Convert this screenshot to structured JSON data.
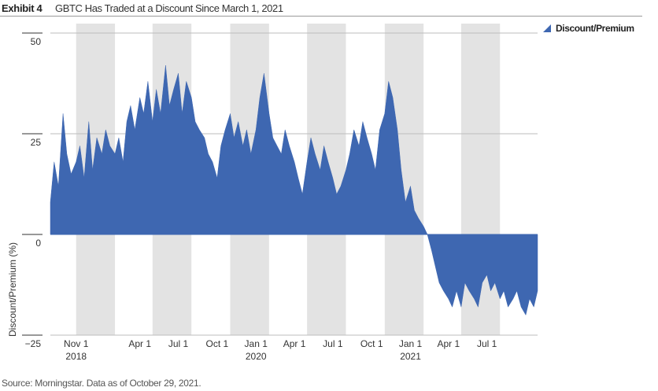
{
  "header": {
    "exhibit": "Exhibit 4",
    "title": "GBTC Has Traded at a Discount Since March 1, 2021"
  },
  "source": "Source: Morningstar.  Data as of October 29, 2021.",
  "colors": {
    "series": "#3e67b1",
    "band": "#e3e3e3",
    "grid": "#bdbdbd"
  },
  "chart_data": {
    "type": "area",
    "ylabel": "Discount/Premium (%)",
    "ylim": [
      -25,
      50
    ],
    "yticks": [
      50,
      25,
      0,
      -25
    ],
    "ytick_labels": [
      "50",
      "25",
      "0",
      "−25"
    ],
    "xlim": [
      "2018-09-01",
      "2021-10-29"
    ],
    "xticks": [
      {
        "date": "2018-11-01",
        "label": "Nov 1",
        "year": "2018"
      },
      {
        "date": "2019-04-01",
        "label": "Apr 1",
        "year": ""
      },
      {
        "date": "2019-07-01",
        "label": "Jul 1",
        "year": ""
      },
      {
        "date": "2019-10-01",
        "label": "Oct 1",
        "year": ""
      },
      {
        "date": "2020-01-01",
        "label": "Jan 1",
        "year": "2020"
      },
      {
        "date": "2020-04-01",
        "label": "Apr 1",
        "year": ""
      },
      {
        "date": "2020-07-01",
        "label": "Jul 1",
        "year": ""
      },
      {
        "date": "2020-10-01",
        "label": "Oct 1",
        "year": ""
      },
      {
        "date": "2021-01-01",
        "label": "Jan 1",
        "year": "2021"
      },
      {
        "date": "2021-04-01",
        "label": "Apr 1",
        "year": ""
      },
      {
        "date": "2021-07-01",
        "label": "Jul 1",
        "year": ""
      }
    ],
    "bands": [
      [
        "2018-11-01",
        "2019-02-01"
      ],
      [
        "2019-05-01",
        "2019-08-01"
      ],
      [
        "2019-11-01",
        "2020-02-01"
      ],
      [
        "2020-05-01",
        "2020-08-01"
      ],
      [
        "2020-11-01",
        "2021-02-01"
      ],
      [
        "2021-05-01",
        "2021-08-01"
      ]
    ],
    "series": [
      {
        "name": "Discount/Premium",
        "x": [
          "2018-09-01",
          "2018-09-10",
          "2018-09-20",
          "2018-10-01",
          "2018-10-10",
          "2018-10-20",
          "2018-11-01",
          "2018-11-10",
          "2018-11-20",
          "2018-12-01",
          "2018-12-10",
          "2018-12-20",
          "2019-01-01",
          "2019-01-10",
          "2019-01-20",
          "2019-02-01",
          "2019-02-10",
          "2019-02-20",
          "2019-03-01",
          "2019-03-10",
          "2019-03-20",
          "2019-04-01",
          "2019-04-10",
          "2019-04-20",
          "2019-05-01",
          "2019-05-10",
          "2019-05-20",
          "2019-06-01",
          "2019-06-10",
          "2019-06-20",
          "2019-07-01",
          "2019-07-10",
          "2019-07-20",
          "2019-08-01",
          "2019-08-10",
          "2019-08-20",
          "2019-09-01",
          "2019-09-10",
          "2019-09-20",
          "2019-10-01",
          "2019-10-10",
          "2019-10-20",
          "2019-11-01",
          "2019-11-10",
          "2019-11-20",
          "2019-12-01",
          "2019-12-10",
          "2019-12-20",
          "2020-01-01",
          "2020-01-10",
          "2020-01-20",
          "2020-02-01",
          "2020-02-10",
          "2020-02-20",
          "2020-03-01",
          "2020-03-10",
          "2020-03-20",
          "2020-04-01",
          "2020-04-10",
          "2020-04-20",
          "2020-05-01",
          "2020-05-10",
          "2020-05-20",
          "2020-06-01",
          "2020-06-10",
          "2020-06-20",
          "2020-07-01",
          "2020-07-10",
          "2020-07-20",
          "2020-08-01",
          "2020-08-10",
          "2020-08-20",
          "2020-09-01",
          "2020-09-10",
          "2020-09-20",
          "2020-10-01",
          "2020-10-10",
          "2020-10-20",
          "2020-11-01",
          "2020-11-10",
          "2020-11-20",
          "2020-12-01",
          "2020-12-10",
          "2020-12-20",
          "2021-01-01",
          "2021-01-10",
          "2021-01-20",
          "2021-02-01",
          "2021-02-10",
          "2021-02-20",
          "2021-03-01",
          "2021-03-10",
          "2021-03-20",
          "2021-04-01",
          "2021-04-10",
          "2021-04-20",
          "2021-05-01",
          "2021-05-10",
          "2021-05-20",
          "2021-06-01",
          "2021-06-10",
          "2021-06-20",
          "2021-07-01",
          "2021-07-10",
          "2021-07-20",
          "2021-08-01",
          "2021-08-10",
          "2021-08-20",
          "2021-09-01",
          "2021-09-10",
          "2021-09-20",
          "2021-10-01",
          "2021-10-10",
          "2021-10-20",
          "2021-10-29"
        ],
        "values": [
          8,
          18,
          12,
          30,
          20,
          15,
          18,
          22,
          14,
          28,
          16,
          24,
          20,
          26,
          22,
          20,
          24,
          18,
          28,
          32,
          26,
          34,
          30,
          38,
          28,
          36,
          30,
          42,
          32,
          36,
          40,
          30,
          38,
          34,
          28,
          26,
          24,
          20,
          18,
          14,
          22,
          26,
          30,
          24,
          28,
          22,
          26,
          20,
          26,
          34,
          40,
          30,
          24,
          22,
          20,
          26,
          22,
          18,
          14,
          10,
          18,
          24,
          20,
          16,
          22,
          18,
          14,
          10,
          12,
          16,
          20,
          26,
          22,
          28,
          24,
          20,
          16,
          26,
          30,
          38,
          34,
          26,
          16,
          8,
          12,
          6,
          4,
          2,
          0,
          -4,
          -8,
          -12,
          -14,
          -16,
          -18,
          -14,
          -18,
          -12,
          -14,
          -16,
          -18,
          -12,
          -10,
          -14,
          -12,
          -16,
          -14,
          -18,
          -16,
          -14,
          -18,
          -20,
          -16,
          -18,
          -14
        ]
      }
    ]
  }
}
